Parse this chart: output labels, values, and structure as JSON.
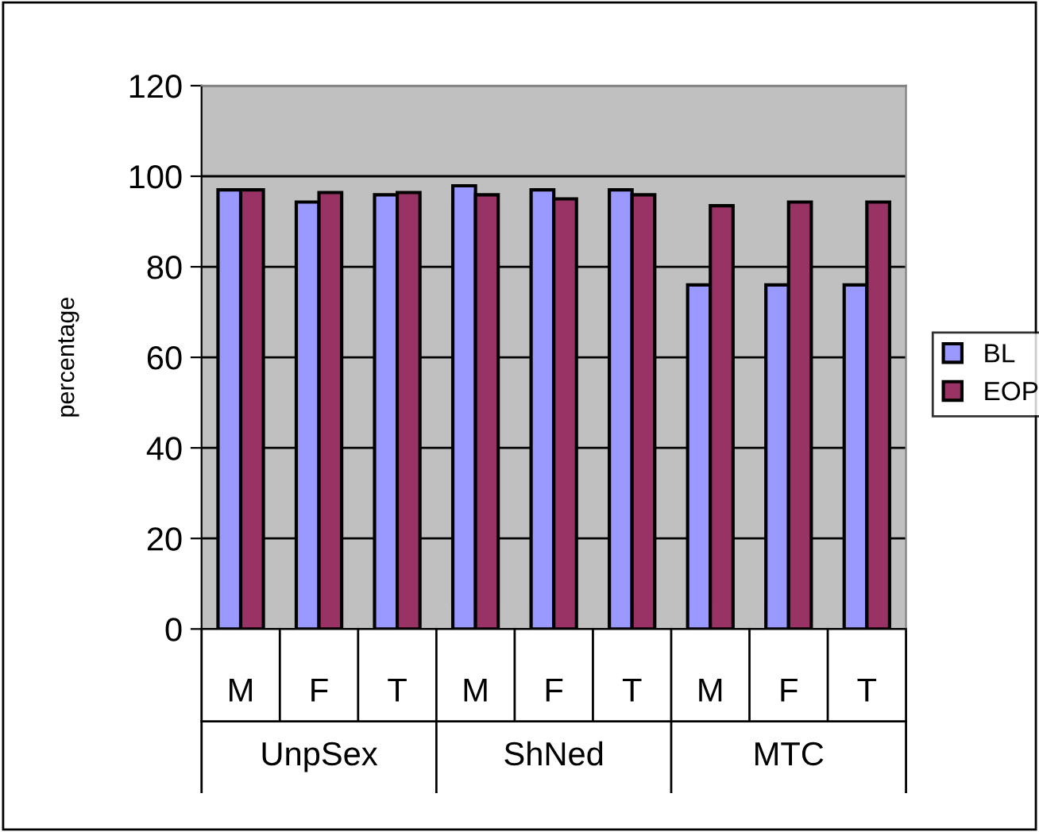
{
  "chart_data": {
    "type": "bar",
    "ylabel": "percentage",
    "categories": [
      "M",
      "F",
      "T",
      "M",
      "F",
      "T",
      "M",
      "F",
      "T"
    ],
    "series": [
      {
        "name": "BL",
        "color": "#9999ff",
        "values": [
          97,
          94.3,
          95.9,
          97.9,
          97,
          97,
          76,
          76,
          76
        ]
      },
      {
        "name": "EOP",
        "color": "#993366",
        "values": [
          97,
          96.4,
          96.4,
          95.9,
          95,
          95.9,
          93.5,
          94.3,
          94.3
        ]
      }
    ],
    "annotations": [
      "UnpSex",
      "ShNed",
      "MTC"
    ],
    "ylim": [
      0,
      120
    ],
    "yticks": [
      0,
      20,
      40,
      60,
      80,
      100,
      120
    ],
    "grid": "y",
    "legend": "right"
  }
}
